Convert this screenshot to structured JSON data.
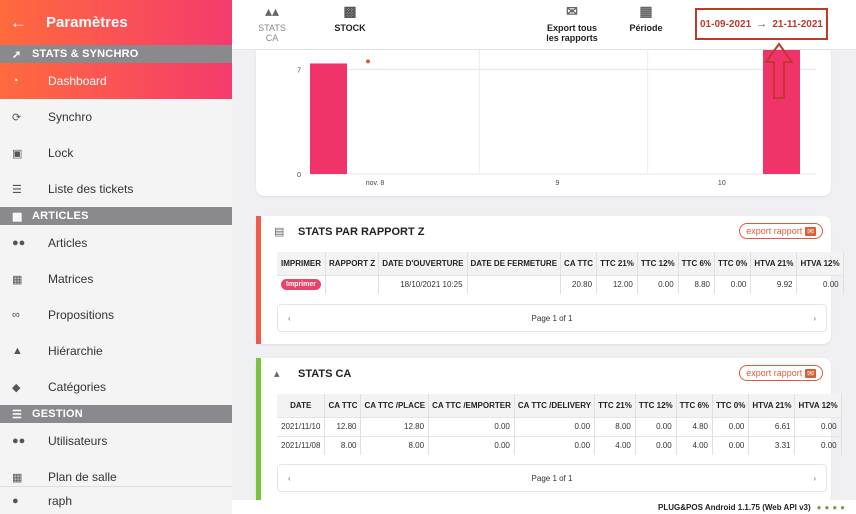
{
  "sidebar": {
    "title": "Paramètres",
    "back_icon": "arrow-left-icon",
    "sections": [
      {
        "label": "STATS & SYNCHRO",
        "icon": "chart-line-icon"
      },
      {
        "label": "ARTICLES",
        "icon": "box-icon"
      },
      {
        "label": "GESTION",
        "icon": "sliders-icon"
      }
    ],
    "items": [
      {
        "label": "Dashboard",
        "icon": "pie-chart-icon"
      },
      {
        "label": "Synchro",
        "icon": "sync-icon"
      },
      {
        "label": "Lock",
        "icon": "lock-icon"
      },
      {
        "label": "Liste des tickets",
        "icon": "list-icon"
      },
      {
        "label": "Articles",
        "icon": "users-group-icon"
      },
      {
        "label": "Matrices",
        "icon": "grid-icon"
      },
      {
        "label": "Propositions",
        "icon": "link-icon"
      },
      {
        "label": "Hiérarchie",
        "icon": "sitemap-icon"
      },
      {
        "label": "Catégories",
        "icon": "tag-icon"
      },
      {
        "label": "Utilisateurs",
        "icon": "users-icon"
      },
      {
        "label": "Plan de salle",
        "icon": "floor-plan-icon"
      }
    ],
    "user": {
      "name": "raph",
      "icon": "user-icon"
    }
  },
  "toolbar": {
    "stats_ca": "STATS CA",
    "stock": "STOCK",
    "export_line1": "Export tous",
    "export_line2": "les rapports",
    "periode": "Période",
    "date_from": "01-09-2021",
    "date_to": "21-11-2021"
  },
  "chart_data": {
    "type": "bar",
    "categories": [
      "nov. 8",
      "9",
      "10"
    ],
    "values": [
      7.4,
      0,
      8.3
    ],
    "yticks": [
      0,
      7
    ],
    "ylim": [
      0,
      8.3
    ],
    "color": "#f0346a",
    "title": "",
    "xlabel": "",
    "ylabel": ""
  },
  "rapport_z": {
    "title": "STATS PAR RAPPORT Z",
    "export_label": "export rapport",
    "headers": [
      "IMPRIMER",
      "RAPPORT Z",
      "DATE D'OUVERTURE",
      "DATE DE FERMETURE",
      "CA TTC",
      "TTC 21%",
      "TTC 12%",
      "TTC 6%",
      "TTC 0%",
      "HTVA 21%",
      "HTVA 12%"
    ],
    "print_label": "Imprimer",
    "rows": [
      [
        "",
        "",
        "18/10/2021 10:25",
        "",
        "20.80",
        "12.00",
        "0.00",
        "8.80",
        "0.00",
        "9.92",
        "0.00"
      ]
    ],
    "pager": "Page 1 of 1"
  },
  "stats_ca": {
    "title": "STATS CA",
    "export_label": "export rapport",
    "headers": [
      "DATE",
      "CA TTC",
      "CA TTC /PLACE",
      "CA TTC /EMPORTER",
      "CA TTC /DELIVERY",
      "TTC 21%",
      "TTC 12%",
      "TTC 6%",
      "TTC 0%",
      "HTVA 21%",
      "HTVA 12%"
    ],
    "rows": [
      [
        "2021/11/10",
        "12.80",
        "12.80",
        "0.00",
        "0.00",
        "8.00",
        "0.00",
        "4.80",
        "0.00",
        "6.61",
        "0.00"
      ],
      [
        "2021/11/08",
        "8.00",
        "8.00",
        "0.00",
        "0.00",
        "4.00",
        "0.00",
        "4.00",
        "0.00",
        "3.31",
        "0.00"
      ]
    ],
    "pager": "Page 1 of 1"
  },
  "footer": {
    "version": "PLUG&POS Android 1.1.75 (Web API v3)"
  }
}
